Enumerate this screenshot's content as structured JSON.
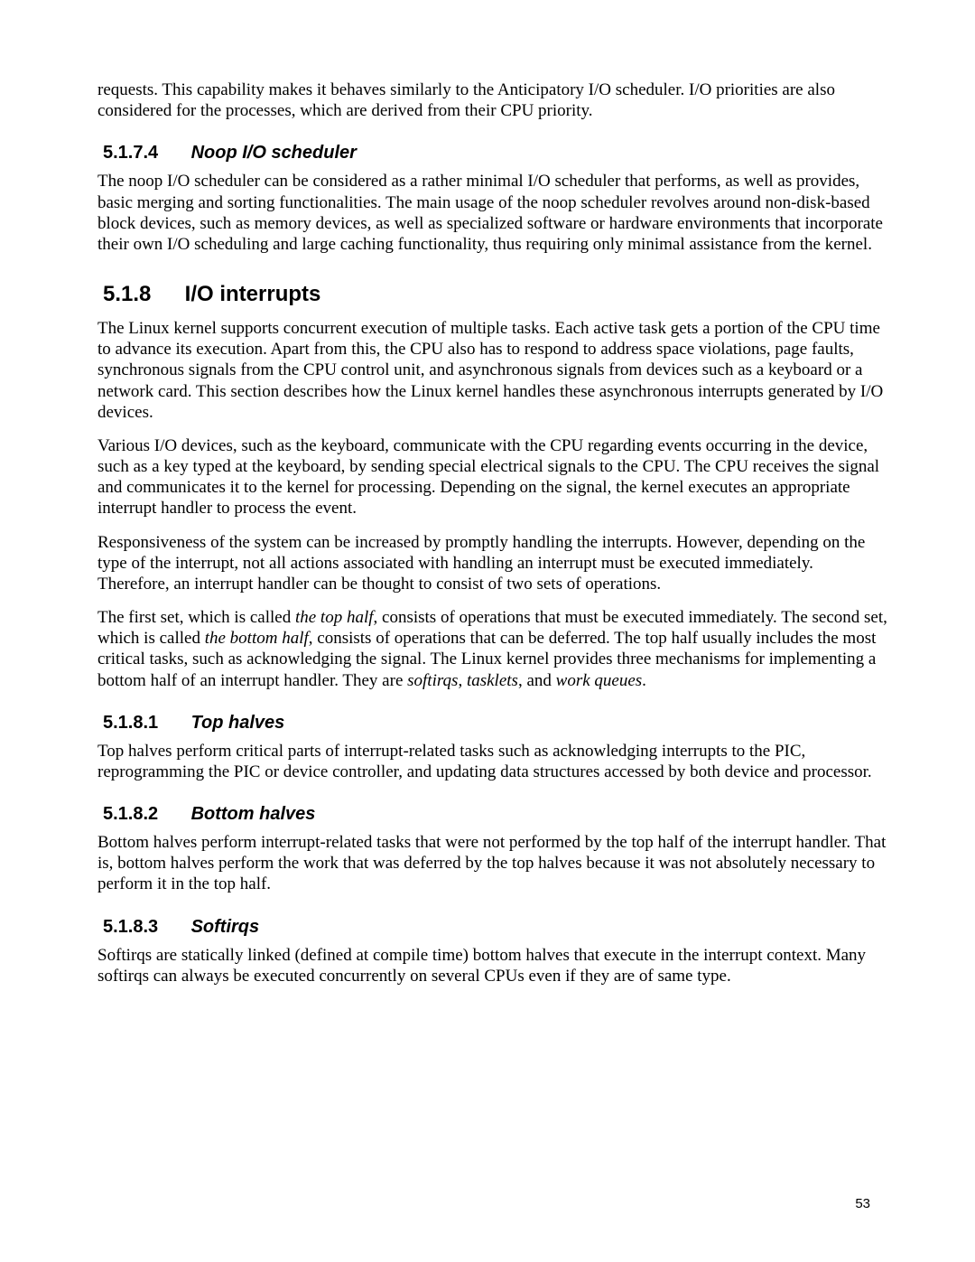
{
  "page_number": "53",
  "intro_paragraph": "requests.  This capability makes it behaves similarly to the Anticipatory I/O scheduler.  I/O priorities are also considered for the processes, which are derived from their CPU priority.",
  "sec_5174": {
    "num": "5.1.7.4",
    "title": "Noop I/O scheduler",
    "p1": "The noop I/O scheduler can be considered as a rather minimal I/O scheduler that performs, as well as provides, basic merging and sorting functionalities.  The main usage of the noop scheduler revolves around non-disk-based block devices, such as memory devices, as well as specialized software or hardware environments that incorporate their own I/O scheduling and large caching functionality, thus requiring only minimal assistance from the kernel."
  },
  "sec_518": {
    "num": "5.1.8",
    "title": "I/O interrupts",
    "p1": "The Linux kernel supports concurrent execution of multiple tasks.  Each active task gets a portion of the CPU time to advance its execution.  Apart from this, the CPU also has to respond to address space violations, page faults, synchronous signals from the CPU control unit, and asynchronous signals from devices such as a keyboard or a network card.  This section describes how the Linux kernel handles these asynchronous interrupts generated by I/O devices.",
    "p2": "Various I/O devices, such as the keyboard, communicate with the CPU regarding events occurring in the device, such as a key typed at the keyboard, by sending special electrical signals to the CPU.  The CPU receives the signal and communicates it to the kernel for processing.  Depending on the signal, the kernel executes an appropriate interrupt handler to process the event.",
    "p3": "Responsiveness of the system can be increased by promptly handling the interrupts.  However, depending on the type of the interrupt, not all actions associated with handling an interrupt must be executed immediately.  Therefore, an interrupt handler can be thought to consist of two sets of operations.",
    "p4_a": "The first set, which is called ",
    "p4_i1": "the top half",
    "p4_b": ", consists of operations that must be executed immediately.  The second set, which is called ",
    "p4_i2": "the bottom half",
    "p4_c": ", consists of operations that can be deferred.  The top half usually includes the most critical tasks, such as acknowledging the signal. The Linux kernel provides three mechanisms for implementing a bottom half of an interrupt handler. They are ",
    "p4_i3": "softirqs",
    "p4_d": ", ",
    "p4_i4": "tasklets",
    "p4_e": ", and ",
    "p4_i5": "work queues",
    "p4_f": "."
  },
  "sec_5181": {
    "num": "5.1.8.1",
    "title": "Top halves",
    "p1": "Top halves perform critical parts of interrupt-related tasks such as acknowledging interrupts to the PIC, reprogramming the PIC or device controller, and updating data structures accessed by both device and processor."
  },
  "sec_5182": {
    "num": "5.1.8.2",
    "title": "Bottom halves",
    "p1": "Bottom halves perform interrupt-related tasks that were not performed by the top half of the interrupt handler.  That is, bottom halves perform the work that was deferred by the top halves because it was not absolutely necessary to perform it in the top half."
  },
  "sec_5183": {
    "num": "5.1.8.3",
    "title": "Softirqs",
    "p1": "Softirqs are statically linked (defined at compile time) bottom halves that execute in the interrupt context.  Many softirqs can always be executed concurrently on several CPUs even if they are of same type."
  }
}
